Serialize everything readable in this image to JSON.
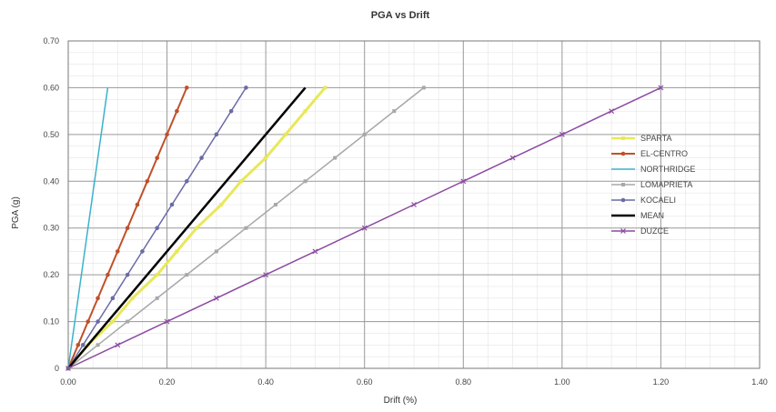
{
  "chart_data": {
    "type": "line",
    "title": "PGA vs Drift",
    "xlabel": "Drift (%)",
    "ylabel": "PGA (g)",
    "xlim": [
      0,
      1.4
    ],
    "ylim": [
      0,
      0.7
    ],
    "x_ticks": [
      "0.00",
      "0.20",
      "0.40",
      "0.60",
      "0.80",
      "1.00",
      "1.20",
      "1.40"
    ],
    "y_ticks": [
      "0",
      "0.10",
      "0.20",
      "0.30",
      "0.40",
      "0.50",
      "0.60",
      "0.70"
    ],
    "grid": true,
    "legend_position": "right",
    "series": [
      {
        "name": "SPARTA",
        "color": "#e8e85a",
        "marker": "square",
        "width": 3,
        "points": [
          [
            0,
            0
          ],
          [
            0.04,
            0.05
          ],
          [
            0.09,
            0.1
          ],
          [
            0.13,
            0.15
          ],
          [
            0.18,
            0.2
          ],
          [
            0.22,
            0.25
          ],
          [
            0.26,
            0.3
          ],
          [
            0.31,
            0.35
          ],
          [
            0.35,
            0.4
          ],
          [
            0.4,
            0.45
          ],
          [
            0.44,
            0.5
          ],
          [
            0.48,
            0.55
          ],
          [
            0.52,
            0.6
          ]
        ]
      },
      {
        "name": "EL-CENTRO",
        "color": "#c0502a",
        "marker": "circle",
        "width": 2,
        "points": [
          [
            0,
            0
          ],
          [
            0.02,
            0.05
          ],
          [
            0.04,
            0.1
          ],
          [
            0.06,
            0.15
          ],
          [
            0.08,
            0.2
          ],
          [
            0.1,
            0.25
          ],
          [
            0.12,
            0.3
          ],
          [
            0.14,
            0.35
          ],
          [
            0.16,
            0.4
          ],
          [
            0.18,
            0.45
          ],
          [
            0.2,
            0.5
          ],
          [
            0.22,
            0.55
          ],
          [
            0.24,
            0.6
          ]
        ]
      },
      {
        "name": "NORTHRIDGE",
        "color": "#3ab2cc",
        "marker": "none",
        "width": 1.5,
        "points": [
          [
            0,
            0
          ],
          [
            0.08,
            0.6
          ]
        ]
      },
      {
        "name": "LOMAPRIETA",
        "color": "#a8a8a8",
        "marker": "square",
        "width": 1.5,
        "points": [
          [
            0,
            0
          ],
          [
            0.06,
            0.05
          ],
          [
            0.12,
            0.1
          ],
          [
            0.18,
            0.15
          ],
          [
            0.24,
            0.2
          ],
          [
            0.3,
            0.25
          ],
          [
            0.36,
            0.3
          ],
          [
            0.42,
            0.35
          ],
          [
            0.48,
            0.4
          ],
          [
            0.54,
            0.45
          ],
          [
            0.6,
            0.5
          ],
          [
            0.66,
            0.55
          ],
          [
            0.72,
            0.6
          ]
        ]
      },
      {
        "name": "KOCAELI",
        "color": "#6a6aa8",
        "marker": "circle",
        "width": 1.5,
        "points": [
          [
            0,
            0
          ],
          [
            0.03,
            0.05
          ],
          [
            0.06,
            0.1
          ],
          [
            0.09,
            0.15
          ],
          [
            0.12,
            0.2
          ],
          [
            0.15,
            0.25
          ],
          [
            0.18,
            0.3
          ],
          [
            0.21,
            0.35
          ],
          [
            0.24,
            0.4
          ],
          [
            0.27,
            0.45
          ],
          [
            0.3,
            0.5
          ],
          [
            0.33,
            0.55
          ],
          [
            0.36,
            0.6
          ]
        ]
      },
      {
        "name": "MEAN",
        "color": "#000000",
        "marker": "none",
        "width": 2.5,
        "points": [
          [
            0,
            0
          ],
          [
            0.48,
            0.6
          ]
        ]
      },
      {
        "name": "DUZCE",
        "color": "#8c4aa2",
        "marker": "cross",
        "width": 1.5,
        "points": [
          [
            0,
            0
          ],
          [
            0.1,
            0.05
          ],
          [
            0.2,
            0.1
          ],
          [
            0.3,
            0.15
          ],
          [
            0.4,
            0.2
          ],
          [
            0.5,
            0.25
          ],
          [
            0.6,
            0.3
          ],
          [
            0.7,
            0.35
          ],
          [
            0.8,
            0.4
          ],
          [
            0.9,
            0.45
          ],
          [
            1.0,
            0.5
          ],
          [
            1.1,
            0.55
          ],
          [
            1.2,
            0.6
          ]
        ]
      }
    ]
  }
}
